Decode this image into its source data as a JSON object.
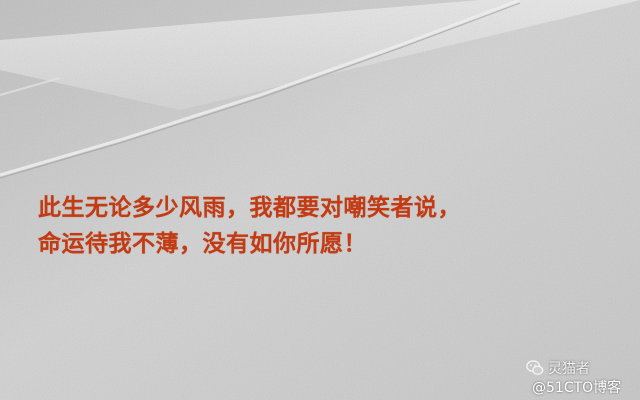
{
  "quote": {
    "line1": "此生无论多少风雨，我都要对嘲笑者说，",
    "line2": "命运待我不薄，没有如你所愿！"
  },
  "watermark": {
    "account": "灵猫者",
    "account_icon": "wechat-icon",
    "site": "@51CTO博客"
  },
  "colors": {
    "text": "#c43a12",
    "paper": "#cfcfcf"
  }
}
